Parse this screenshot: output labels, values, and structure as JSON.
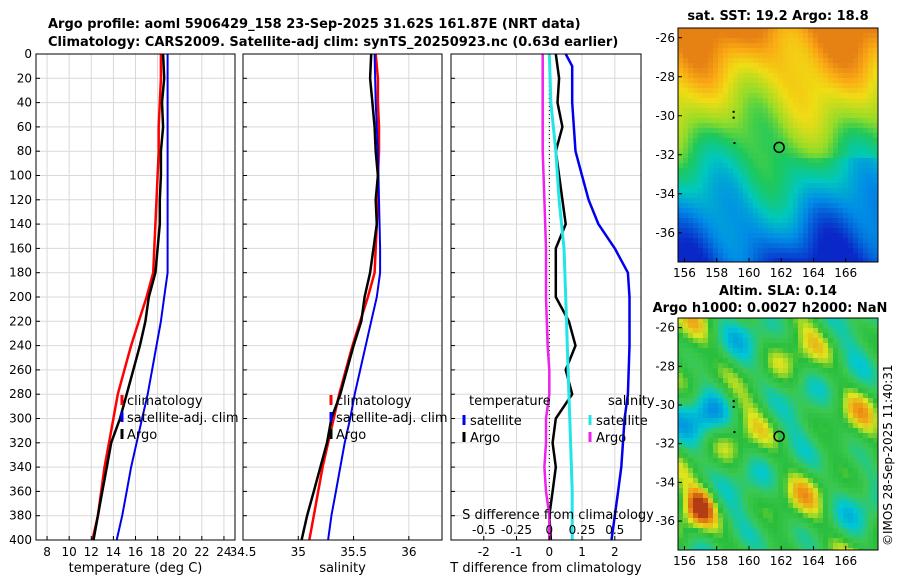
{
  "title": {
    "line1": "Argo profile: aoml 5906429_158 23-Sep-2025 31.62S 161.87E (NRT data)",
    "line2": "Climatology: CARS2009. Satellite-adj clim: synTS_20250923.nc (0.63d earlier)"
  },
  "colors": {
    "climatology": "#ff0000",
    "satellite": "#0000ee",
    "argo": "#000000",
    "sat_salinity": "#22e6e6",
    "argo_salinity": "#ee22ee"
  },
  "depth_axis": {
    "ylim": [
      0,
      400
    ],
    "ticks": [
      "0",
      "20",
      "40",
      "60",
      "80",
      "100",
      "120",
      "140",
      "160",
      "180",
      "200",
      "220",
      "240",
      "260",
      "280",
      "300",
      "320",
      "340",
      "360",
      "380",
      "400"
    ]
  },
  "panels": [
    {
      "id": "temperature",
      "xlim": [
        7,
        25
      ],
      "xticks": [
        {
          "v": 8,
          "label": "8"
        },
        {
          "v": 10,
          "label": "10"
        },
        {
          "v": 12,
          "label": "12"
        },
        {
          "v": 14,
          "label": "14"
        },
        {
          "v": 16,
          "label": "16"
        },
        {
          "v": 18,
          "label": "18"
        },
        {
          "v": 20,
          "label": "20"
        },
        {
          "v": 22,
          "label": "22"
        },
        {
          "v": 24,
          "label": "24"
        }
      ],
      "xlabel": "temperature (deg C)",
      "legend": [
        "climatology",
        "satellite-adj. clim",
        "Argo"
      ],
      "series": [
        {
          "name": "climatology",
          "color": "#ff0000",
          "width": 2.5,
          "points": [
            [
              18.3,
              0
            ],
            [
              18.3,
              20
            ],
            [
              18.2,
              40
            ],
            [
              18.1,
              60
            ],
            [
              18.1,
              80
            ],
            [
              18.0,
              100
            ],
            [
              17.9,
              120
            ],
            [
              17.8,
              140
            ],
            [
              17.7,
              160
            ],
            [
              17.6,
              180
            ],
            [
              17.0,
              200
            ],
            [
              16.3,
              220
            ],
            [
              15.6,
              240
            ],
            [
              15.0,
              260
            ],
            [
              14.4,
              280
            ],
            [
              14.0,
              300
            ],
            [
              13.6,
              320
            ],
            [
              13.2,
              340
            ],
            [
              12.9,
              360
            ],
            [
              12.6,
              380
            ],
            [
              12.1,
              400
            ]
          ]
        },
        {
          "name": "satellite-adj. clim",
          "color": "#0000ee",
          "width": 2,
          "points": [
            [
              18.9,
              0
            ],
            [
              18.9,
              20
            ],
            [
              18.9,
              40
            ],
            [
              18.9,
              60
            ],
            [
              18.9,
              80
            ],
            [
              18.9,
              100
            ],
            [
              18.9,
              120
            ],
            [
              18.9,
              140
            ],
            [
              18.9,
              160
            ],
            [
              18.9,
              180
            ],
            [
              18.6,
              200
            ],
            [
              18.3,
              220
            ],
            [
              17.9,
              240
            ],
            [
              17.5,
              260
            ],
            [
              17.1,
              280
            ],
            [
              16.6,
              300
            ],
            [
              16.1,
              320
            ],
            [
              15.6,
              340
            ],
            [
              15.2,
              360
            ],
            [
              14.8,
              380
            ],
            [
              14.3,
              400
            ]
          ]
        },
        {
          "name": "Argo",
          "color": "#000000",
          "width": 2.5,
          "points": [
            [
              18.5,
              0
            ],
            [
              18.6,
              20
            ],
            [
              18.4,
              40
            ],
            [
              18.5,
              60
            ],
            [
              18.3,
              80
            ],
            [
              18.3,
              100
            ],
            [
              18.2,
              120
            ],
            [
              18.2,
              140
            ],
            [
              18.0,
              160
            ],
            [
              17.8,
              180
            ],
            [
              17.2,
              200
            ],
            [
              16.9,
              220
            ],
            [
              16.4,
              240
            ],
            [
              15.8,
              260
            ],
            [
              15.2,
              280
            ],
            [
              14.6,
              300
            ],
            [
              13.8,
              320
            ],
            [
              13.4,
              340
            ],
            [
              13.0,
              360
            ],
            [
              12.6,
              380
            ],
            [
              12.2,
              400
            ]
          ]
        }
      ]
    },
    {
      "id": "salinity",
      "xlim": [
        34.5,
        36.3
      ],
      "xticks": [
        {
          "v": 34.5,
          "label": "34.5"
        },
        {
          "v": 35,
          "label": "35"
        },
        {
          "v": 35.5,
          "label": "35.5"
        },
        {
          "v": 36,
          "label": "36"
        }
      ],
      "xlabel": "salinity",
      "legend": [
        "climatology",
        "satellite-adj. clim",
        "Argo"
      ],
      "series": [
        {
          "name": "climatology",
          "color": "#ff0000",
          "width": 2.5,
          "points": [
            [
              35.7,
              0
            ],
            [
              35.72,
              20
            ],
            [
              35.72,
              40
            ],
            [
              35.73,
              60
            ],
            [
              35.73,
              80
            ],
            [
              35.72,
              100
            ],
            [
              35.72,
              120
            ],
            [
              35.71,
              140
            ],
            [
              35.7,
              160
            ],
            [
              35.69,
              180
            ],
            [
              35.63,
              200
            ],
            [
              35.56,
              220
            ],
            [
              35.49,
              240
            ],
            [
              35.43,
              260
            ],
            [
              35.37,
              280
            ],
            [
              35.32,
              300
            ],
            [
              35.27,
              320
            ],
            [
              35.22,
              340
            ],
            [
              35.18,
              360
            ],
            [
              35.14,
              380
            ],
            [
              35.1,
              400
            ]
          ]
        },
        {
          "name": "satellite-adj. clim",
          "color": "#0000ee",
          "width": 2,
          "points": [
            [
              35.69,
              0
            ],
            [
              35.7,
              40
            ],
            [
              35.72,
              80
            ],
            [
              35.73,
              120
            ],
            [
              35.74,
              160
            ],
            [
              35.74,
              180
            ],
            [
              35.71,
              200
            ],
            [
              35.66,
              220
            ],
            [
              35.61,
              240
            ],
            [
              35.56,
              260
            ],
            [
              35.51,
              280
            ],
            [
              35.47,
              300
            ],
            [
              35.42,
              320
            ],
            [
              35.38,
              340
            ],
            [
              35.34,
              360
            ],
            [
              35.3,
              380
            ],
            [
              35.27,
              400
            ]
          ]
        },
        {
          "name": "Argo",
          "color": "#000000",
          "width": 2.5,
          "points": [
            [
              35.66,
              0
            ],
            [
              35.65,
              20
            ],
            [
              35.67,
              40
            ],
            [
              35.69,
              60
            ],
            [
              35.7,
              80
            ],
            [
              35.72,
              100
            ],
            [
              35.7,
              120
            ],
            [
              35.71,
              140
            ],
            [
              35.68,
              160
            ],
            [
              35.65,
              180
            ],
            [
              35.6,
              200
            ],
            [
              35.57,
              220
            ],
            [
              35.5,
              240
            ],
            [
              35.44,
              260
            ],
            [
              35.38,
              280
            ],
            [
              35.3,
              300
            ],
            [
              35.26,
              320
            ],
            [
              35.2,
              340
            ],
            [
              35.14,
              360
            ],
            [
              35.08,
              380
            ],
            [
              35.03,
              400
            ]
          ]
        }
      ]
    },
    {
      "id": "difference",
      "xlim": [
        -3.0,
        2.8
      ],
      "xticks": [
        {
          "v": -2,
          "label": "-2"
        },
        {
          "v": -1,
          "label": "-1"
        },
        {
          "v": 0,
          "label": "0"
        },
        {
          "v": 1,
          "label": "1"
        },
        {
          "v": 2,
          "label": "2"
        }
      ],
      "xlabel": "T difference from climatology",
      "sticks": [
        {
          "v": -2,
          "label": "-0.5"
        },
        {
          "v": -1,
          "label": "-0.25"
        },
        {
          "v": 0,
          "label": "0"
        },
        {
          "v": 1,
          "label": "0.25"
        },
        {
          "v": 2,
          "label": "0.5"
        }
      ],
      "slabel": "S difference from climatology",
      "legend_t_title": "temperature",
      "legend_s_title": "salinity",
      "legend_t": [
        "satellite",
        "Argo"
      ],
      "legend_s": [
        "satellite",
        "Argo"
      ],
      "series": [
        {
          "name": "T satellite",
          "color": "#0000ee",
          "width": 2.5,
          "points": [
            [
              0.5,
              0
            ],
            [
              0.7,
              10
            ],
            [
              0.7,
              40
            ],
            [
              0.8,
              80
            ],
            [
              1.0,
              100
            ],
            [
              1.2,
              120
            ],
            [
              1.5,
              140
            ],
            [
              2.0,
              160
            ],
            [
              2.4,
              180
            ],
            [
              2.45,
              200
            ],
            [
              2.45,
              240
            ],
            [
              2.4,
              280
            ],
            [
              2.3,
              300
            ],
            [
              2.2,
              340
            ],
            [
              2.1,
              360
            ],
            [
              2.0,
              380
            ],
            [
              1.9,
              400
            ]
          ]
        },
        {
          "name": "T Argo",
          "color": "#000000",
          "width": 2.5,
          "points": [
            [
              0.2,
              0
            ],
            [
              0.3,
              20
            ],
            [
              0.25,
              40
            ],
            [
              0.4,
              60
            ],
            [
              0.2,
              80
            ],
            [
              0.3,
              100
            ],
            [
              0.4,
              120
            ],
            [
              0.5,
              140
            ],
            [
              0.2,
              160
            ],
            [
              0.2,
              180
            ],
            [
              0.2,
              200
            ],
            [
              0.6,
              220
            ],
            [
              0.8,
              240
            ],
            [
              0.5,
              260
            ],
            [
              0.7,
              280
            ],
            [
              0.2,
              300
            ],
            [
              0.1,
              320
            ],
            [
              0.2,
              340
            ],
            [
              0.1,
              360
            ],
            [
              0.0,
              380
            ],
            [
              0.05,
              400
            ]
          ]
        },
        {
          "name": "S satellite",
          "color": "#22e6e6",
          "width": 3,
          "points": [
            [
              0.0,
              0
            ],
            [
              0.05,
              40
            ],
            [
              0.2,
              80
            ],
            [
              0.3,
              120
            ],
            [
              0.45,
              160
            ],
            [
              0.5,
              200
            ],
            [
              0.55,
              240
            ],
            [
              0.6,
              280
            ],
            [
              0.65,
              320
            ],
            [
              0.7,
              360
            ],
            [
              0.7,
              400
            ]
          ]
        },
        {
          "name": "S Argo",
          "color": "#ee22ee",
          "width": 2.5,
          "points": [
            [
              -0.2,
              0
            ],
            [
              -0.2,
              40
            ],
            [
              -0.2,
              80
            ],
            [
              -0.15,
              120
            ],
            [
              -0.1,
              160
            ],
            [
              -0.1,
              200
            ],
            [
              -0.05,
              240
            ],
            [
              0.0,
              260
            ],
            [
              0.0,
              280
            ],
            [
              -0.1,
              300
            ],
            [
              -0.1,
              320
            ],
            [
              -0.15,
              340
            ],
            [
              -0.1,
              360
            ],
            [
              0.0,
              380
            ],
            [
              0.0,
              400
            ]
          ]
        }
      ]
    }
  ],
  "maps": [
    {
      "id": "sst",
      "title": "sat. SST: 19.2 Argo: 18.8",
      "xticks": [
        {
          "v": 156,
          "label": "156"
        },
        {
          "v": 158,
          "label": "158"
        },
        {
          "v": 160,
          "label": "160"
        },
        {
          "v": 162,
          "label": "162"
        },
        {
          "v": 164,
          "label": "164"
        },
        {
          "v": 166,
          "label": "166"
        }
      ],
      "yticks": [
        {
          "v": -26,
          "label": "-26"
        },
        {
          "v": -28,
          "label": "-28"
        },
        {
          "v": -30,
          "label": "-30"
        },
        {
          "v": -32,
          "label": "-32"
        },
        {
          "v": -34,
          "label": "-34"
        },
        {
          "v": -36,
          "label": "-36"
        }
      ],
      "lon": [
        155.6,
        168.0
      ],
      "lat": [
        -37.5,
        -25.5
      ],
      "float_lon": 161.87,
      "float_lat": -31.62
    },
    {
      "id": "sla",
      "title1": "Altim. SLA: 0.14",
      "title2": "Argo h1000: 0.0027 h2000: NaN",
      "xticks": [
        {
          "v": 156,
          "label": "156"
        },
        {
          "v": 158,
          "label": "158"
        },
        {
          "v": 160,
          "label": "160"
        },
        {
          "v": 162,
          "label": "162"
        },
        {
          "v": 164,
          "label": "164"
        },
        {
          "v": 166,
          "label": "166"
        }
      ],
      "yticks": [
        {
          "v": -26,
          "label": "-26"
        },
        {
          "v": -28,
          "label": "-28"
        },
        {
          "v": -30,
          "label": "-30"
        },
        {
          "v": -32,
          "label": "-32"
        },
        {
          "v": -34,
          "label": "-34"
        },
        {
          "v": -36,
          "label": "-36"
        }
      ],
      "lon": [
        155.6,
        168.0
      ],
      "lat": [
        -37.5,
        -25.5
      ],
      "float_lon": 161.87,
      "float_lat": -31.62
    }
  ],
  "credit": "©IMOS 28-Sep-2025 11:40:31"
}
